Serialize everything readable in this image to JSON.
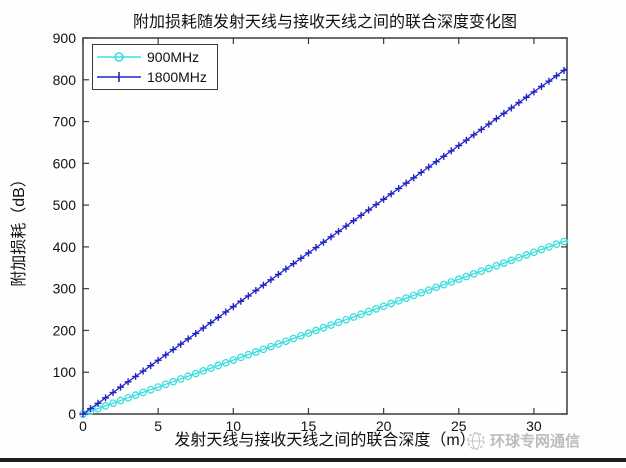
{
  "watermark": {
    "icon": "globe-icon",
    "text": "环球专网通信"
  },
  "chart_data": {
    "type": "line",
    "title": "附加损耗随发射天线与接收天线之间的联合深度变化图",
    "xlabel": "发射天线与接收天线之间的联合深度（m）",
    "ylabel": "附加损耗（dB）",
    "xlim": [
      0,
      32.2
    ],
    "ylim": [
      0,
      900
    ],
    "xticks": [
      0,
      5,
      10,
      15,
      20,
      25,
      30
    ],
    "yticks": [
      0,
      100,
      200,
      300,
      400,
      500,
      600,
      700,
      800,
      900
    ],
    "grid": false,
    "legend_position": "top-left",
    "axis_color": "#3a3a3a",
    "series": [
      {
        "name": "900MHz",
        "color": "#3bdede",
        "marker": "circle",
        "x": [
          0,
          0.5,
          1,
          1.5,
          2,
          2.5,
          3,
          3.5,
          4,
          4.5,
          5,
          5.5,
          6,
          6.5,
          7,
          7.5,
          8,
          8.5,
          9,
          9.5,
          10,
          10.5,
          11,
          11.5,
          12,
          12.5,
          13,
          13.5,
          14,
          14.5,
          15,
          15.5,
          16,
          16.5,
          17,
          17.5,
          18,
          18.5,
          19,
          19.5,
          20,
          20.5,
          21,
          21.5,
          22,
          22.5,
          23,
          23.5,
          24,
          24.5,
          25,
          25.5,
          26,
          26.5,
          27,
          27.5,
          28,
          28.5,
          29,
          29.5,
          30,
          30.5,
          31,
          31.5,
          32
        ],
        "y": [
          0,
          6.5,
          12.9,
          19.4,
          25.8,
          32.3,
          38.7,
          45.2,
          51.6,
          58.1,
          64.5,
          71,
          77.4,
          83.9,
          90.3,
          96.8,
          103.2,
          109.7,
          116.1,
          122.6,
          129,
          135.5,
          141.9,
          148.4,
          154.8,
          161.3,
          167.7,
          174.2,
          180.6,
          187.1,
          193.5,
          200,
          206.4,
          212.9,
          219.3,
          225.8,
          232.2,
          238.7,
          245.1,
          251.6,
          258,
          264.5,
          270.9,
          277.4,
          283.8,
          290.3,
          296.7,
          303.2,
          309.6,
          316.1,
          322.5,
          329,
          335.4,
          341.9,
          348.3,
          354.8,
          361.2,
          367.7,
          374.1,
          380.6,
          387,
          393.5,
          399.9,
          406.4,
          412.8
        ]
      },
      {
        "name": "1800MHz",
        "color": "#2323c8",
        "marker": "plus",
        "x": [
          0,
          0.5,
          1,
          1.5,
          2,
          2.5,
          3,
          3.5,
          4,
          4.5,
          5,
          5.5,
          6,
          6.5,
          7,
          7.5,
          8,
          8.5,
          9,
          9.5,
          10,
          10.5,
          11,
          11.5,
          12,
          12.5,
          13,
          13.5,
          14,
          14.5,
          15,
          15.5,
          16,
          16.5,
          17,
          17.5,
          18,
          18.5,
          19,
          19.5,
          20,
          20.5,
          21,
          21.5,
          22,
          22.5,
          23,
          23.5,
          24,
          24.5,
          25,
          25.5,
          26,
          26.5,
          27,
          27.5,
          28,
          28.5,
          29,
          29.5,
          30,
          30.5,
          31,
          31.5,
          32
        ],
        "y": [
          0,
          12.9,
          25.7,
          38.6,
          51.4,
          64.3,
          77.1,
          90,
          102.8,
          115.7,
          128.5,
          141.4,
          154.2,
          167.1,
          179.9,
          192.8,
          205.6,
          218.5,
          231.3,
          244.2,
          257,
          269.9,
          282.7,
          295.6,
          308.4,
          321.3,
          334.1,
          347,
          359.8,
          372.7,
          385.5,
          398.4,
          411.2,
          424.1,
          436.9,
          449.8,
          462.6,
          475.5,
          488.3,
          501.2,
          514,
          526.9,
          539.7,
          552.6,
          565.4,
          578.3,
          591.1,
          604,
          616.8,
          629.7,
          642.5,
          655.4,
          668.2,
          681.1,
          693.9,
          706.8,
          719.6,
          732.5,
          745.3,
          758.2,
          771,
          783.9,
          796.7,
          809.6,
          822.4
        ]
      }
    ]
  }
}
